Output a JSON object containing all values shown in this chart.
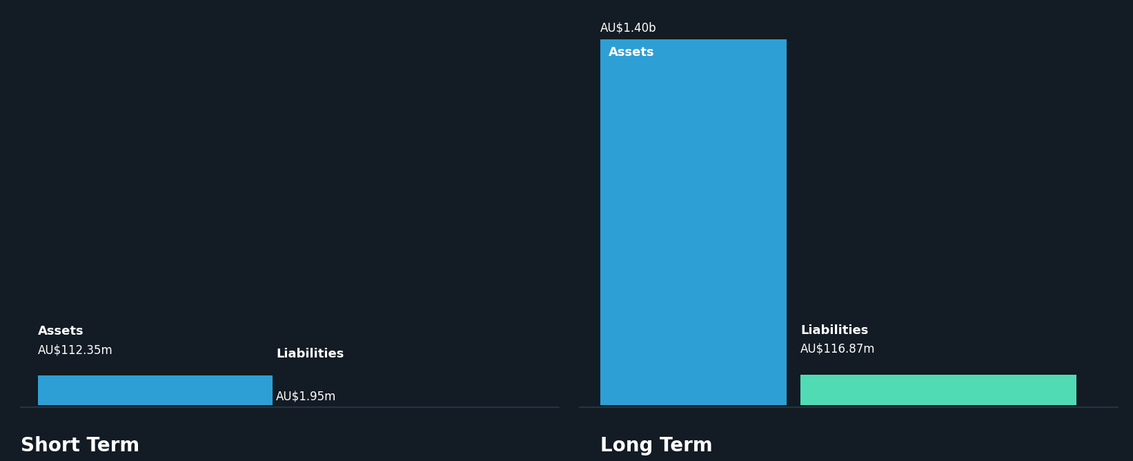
{
  "background_color": "#131b24",
  "text_color": "#ffffff",
  "short_term": {
    "label": "Short Term",
    "assets_value": 112.35,
    "assets_label": "Assets",
    "assets_value_label": "AU$112.35m",
    "assets_color": "#2e9fd4",
    "liabilities_value": 1.95,
    "liabilities_label": "Liabilities",
    "liabilities_value_label": "AU$1.95m",
    "liabilities_color": "#2e9fd4"
  },
  "long_term": {
    "label": "Long Term",
    "assets_value": 1400,
    "assets_label": "Assets",
    "assets_value_label": "AU$1.40b",
    "assets_color": "#2e9fd4",
    "liabilities_value": 116.87,
    "liabilities_label": "Liabilities",
    "liabilities_value_label": "AU$116.87m",
    "liabilities_color": "#50dbb4"
  },
  "baseline_color": "#2a3a4a",
  "font_bold": "bold"
}
